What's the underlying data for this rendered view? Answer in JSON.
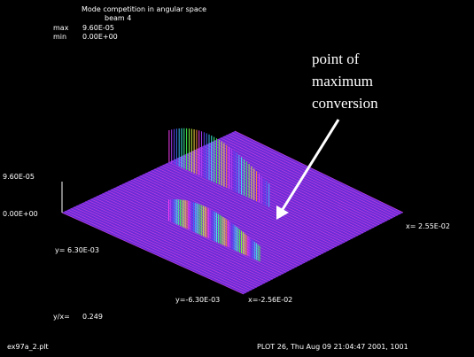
{
  "plot": {
    "title": "Mode competition in angular space",
    "subtitle": "beam 4",
    "max_label": "max",
    "max_value": "9.60E-05",
    "min_label": "min",
    "min_value": "0.00E+00",
    "z_top": "9.60E-05",
    "z_bottom": "0.00E+00",
    "y_back": "y= 6.30E-03",
    "y_front": "y=-6.30E-03",
    "x_left": "x=-2.56E-02",
    "x_right": "x= 2.55E-02",
    "aspect_label": "y/x=",
    "aspect_value": "0.249",
    "file": "ex97a_2.plt",
    "footer": "PLOT 26, Thu Aug 09 21:04:47 2001, 1001",
    "annotation": [
      "point of",
      "maximum",
      "conversion"
    ]
  }
}
